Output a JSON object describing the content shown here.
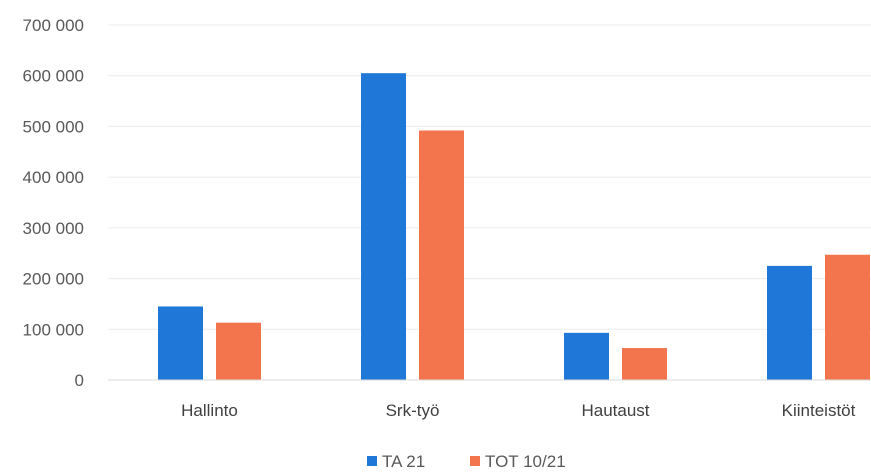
{
  "chart_data": {
    "type": "bar",
    "categories": [
      "Hallinto",
      "Srk-työ",
      "Hautaust",
      "Kiinteistöt"
    ],
    "series": [
      {
        "name": "TA 21",
        "color": "#1f78d7",
        "values": [
          145000,
          605000,
          93000,
          225000
        ]
      },
      {
        "name": "TOT 10/21",
        "color": "#f2754e",
        "values": [
          113000,
          492000,
          63000,
          247000
        ]
      }
    ],
    "ylim": [
      0,
      700000
    ],
    "yticks": [
      0,
      100000,
      200000,
      300000,
      400000,
      500000,
      600000,
      700000
    ],
    "ytick_labels": [
      "0",
      "100 000",
      "200 000",
      "300 000",
      "400 000",
      "500 000",
      "600 000",
      "700 000"
    ],
    "title": "",
    "xlabel": "",
    "ylabel": "",
    "grid": true,
    "legend_position": "bottom-center"
  }
}
